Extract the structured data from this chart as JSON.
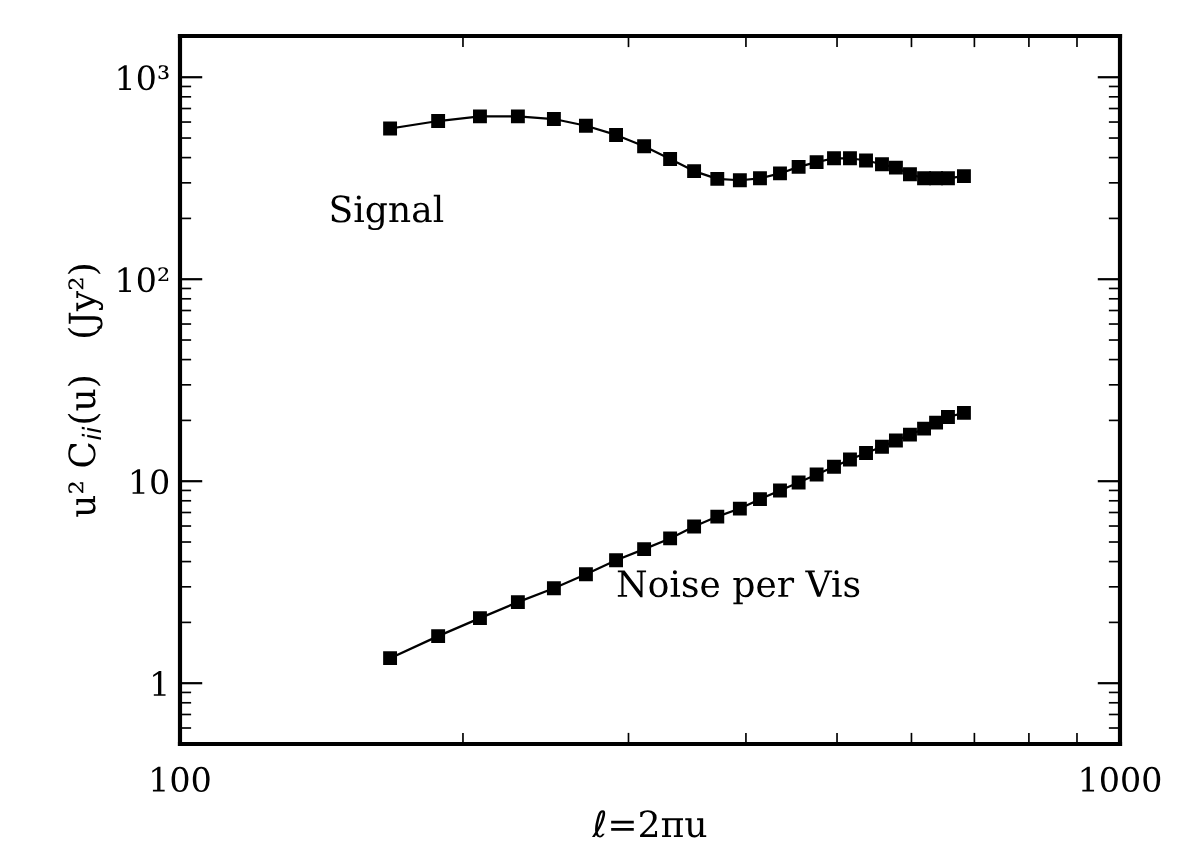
{
  "chart_data": {
    "type": "line",
    "xlabel": "ℓ=2πu",
    "ylabel": "u² C$_{ii}$(u)   (Jy²)",
    "log": "xy",
    "xlim": [
      100,
      1000
    ],
    "ylim": [
      0.5,
      1600
    ],
    "xticks": [
      100,
      1000
    ],
    "yticks": [
      1,
      10,
      {
        "value": 100,
        "label": "10²"
      },
      {
        "value": 1000,
        "label": "10³"
      }
    ],
    "marker": "square",
    "line_style": "solid",
    "grid": false,
    "legend": false,
    "x": [
      167.3,
      188.2,
      208.5,
      228.8,
      249.9,
      270.3,
      291.0,
      311.7,
      332.2,
      352.3,
      372.9,
      394.1,
      414.0,
      434.8,
      455.1,
      475.6,
      496.3,
      516.1,
      536.8,
      558.2,
      577.6,
      597.8,
      618.8,
      637.3,
      656.1,
      682.3
    ],
    "series": [
      {
        "name": "Signal",
        "color": "#000000",
        "values": [
          557,
          607,
          640,
          640,
          621,
          575,
          518,
          455,
          394,
          343,
          314,
          309,
          316,
          334,
          360,
          380,
          397,
          397,
          387,
          371,
          357,
          331,
          316,
          316,
          316,
          324
        ]
      },
      {
        "name": "Noise per Vis",
        "color": "#000000",
        "values": [
          1.33,
          1.71,
          2.1,
          2.52,
          2.95,
          3.46,
          4.06,
          4.61,
          5.21,
          5.97,
          6.68,
          7.32,
          8.15,
          9.0,
          9.85,
          10.8,
          11.8,
          12.8,
          13.8,
          14.8,
          15.9,
          17.0,
          18.2,
          19.5,
          20.8,
          21.8
        ]
      }
    ]
  }
}
